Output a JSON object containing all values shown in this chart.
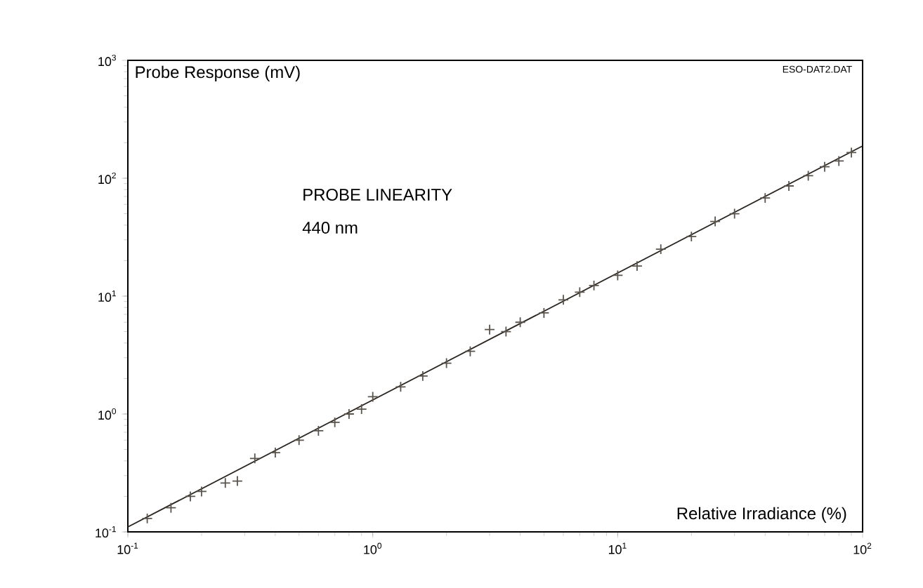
{
  "chart_data": {
    "type": "scatter",
    "title": "PROBE LINEARITY",
    "subtitle": "440 nm",
    "xlabel": "Relative Irradiance (%)",
    "ylabel": "Probe Response (mV)",
    "annotations": [
      "ESO-DAT2.DAT"
    ],
    "log": "xy",
    "grid": false,
    "xlim": [
      0.1,
      100
    ],
    "ylim": [
      0.1,
      1000
    ],
    "xticks": [
      {
        "value": 0.1,
        "label": "10$^{-1}$"
      },
      {
        "value": 1,
        "label": "10$^{0}$"
      },
      {
        "value": 10,
        "label": "10$^{1}$"
      },
      {
        "value": 100,
        "label": "10$^{2}$"
      }
    ],
    "yticks": [
      {
        "value": 0.1,
        "label": "10$^{-1}$"
      },
      {
        "value": 1,
        "label": "10$^{0}$"
      },
      {
        "value": 10,
        "label": "10$^{1}$"
      },
      {
        "value": 100,
        "label": "10$^{2}$"
      },
      {
        "value": 1000,
        "label": "10$^{3}$"
      }
    ],
    "series": [
      {
        "type": "line",
        "marker": "none",
        "line_style": "solid",
        "color": "#2a2520",
        "x": [
          0.1,
          100
        ],
        "values": [
          0.11,
          188
        ]
      },
      {
        "marker": "cross",
        "color": "#5a544c",
        "x": [
          0.12,
          0.15,
          0.18,
          0.2,
          0.25,
          0.28,
          0.33,
          0.4,
          0.5,
          0.6,
          0.7,
          0.8,
          0.9,
          1.0,
          1.3,
          1.6,
          2,
          2.5,
          3,
          3.5,
          4,
          5,
          6,
          7,
          8,
          10,
          12,
          15,
          20,
          25,
          30,
          40,
          50,
          60,
          70,
          80,
          90
        ],
        "values": [
          0.13,
          0.16,
          0.2,
          0.22,
          0.26,
          0.27,
          0.42,
          0.47,
          0.6,
          0.72,
          0.85,
          1.0,
          1.1,
          1.4,
          1.7,
          2.1,
          2.7,
          3.4,
          5.2,
          5.0,
          6.0,
          7.2,
          9.3,
          10.8,
          12.3,
          15,
          18,
          25,
          32,
          43,
          50,
          68,
          86,
          105,
          125,
          140,
          165
        ]
      }
    ]
  }
}
